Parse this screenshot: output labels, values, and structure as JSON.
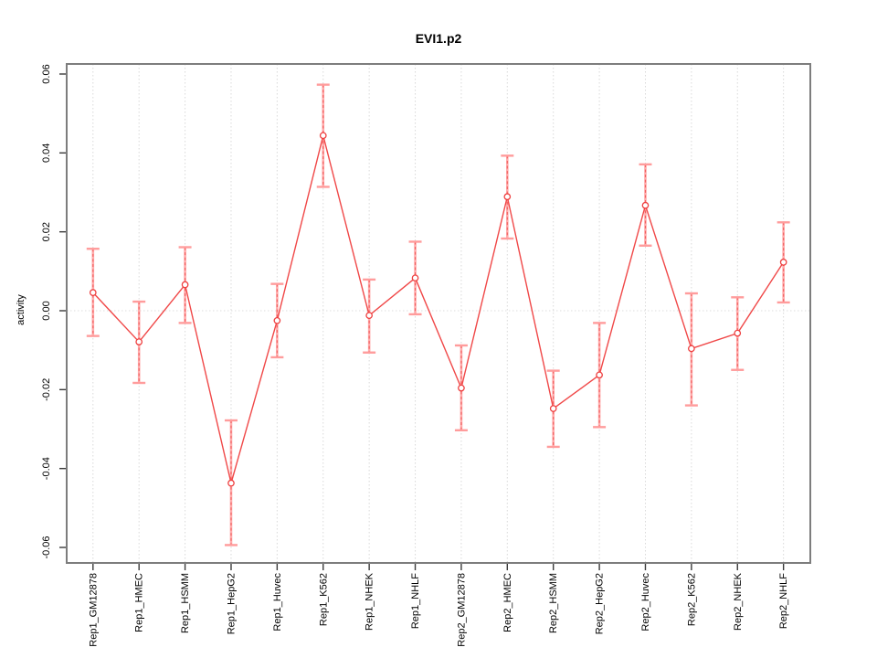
{
  "chart_data": {
    "type": "line",
    "title": "EVI1.p2",
    "xlabel": "",
    "ylabel": "activity",
    "ylim": [
      -0.06,
      0.06
    ],
    "ytick_labels": [
      "0.06",
      "0.04",
      "0.02",
      "0.00",
      "-0.02",
      "-0.04",
      "-0.06"
    ],
    "categories": [
      "Rep1_GM12878",
      "Rep1_HMEC",
      "Rep1_HSMM",
      "Rep1_HepG2",
      "Rep1_Huvec",
      "Rep1_K562",
      "Rep1_NHEK",
      "Rep1_NHLF",
      "Rep2_GM12878",
      "Rep2_HMEC",
      "Rep2_HSMM",
      "Rep2_HepG2",
      "Rep2_Huvec",
      "Rep2_K562",
      "Rep2_NHEK",
      "Rep2_NHLF"
    ],
    "series": [
      {
        "name": "EVI1.p2 activity",
        "marker": "open-circle",
        "values": [
          0.0046,
          -0.0079,
          0.0066,
          -0.0437,
          -0.0025,
          0.0444,
          -0.0012,
          0.0083,
          -0.0196,
          0.0289,
          -0.0248,
          -0.0163,
          0.0267,
          -0.0096,
          -0.0057,
          0.0123
        ],
        "upper": [
          0.0157,
          0.0023,
          0.0161,
          -0.0278,
          0.0068,
          0.0573,
          0.0079,
          0.0175,
          -0.0088,
          0.0393,
          -0.0152,
          -0.0031,
          0.0371,
          0.0044,
          0.0034,
          0.0224
        ],
        "lower": [
          -0.0064,
          -0.0183,
          -0.0031,
          -0.0594,
          -0.0118,
          0.0314,
          -0.0106,
          -0.0009,
          -0.0303,
          0.0183,
          -0.0345,
          -0.0295,
          0.0165,
          -0.024,
          -0.015,
          0.0021
        ]
      }
    ],
    "legend": "none",
    "grid": {
      "vertical_dotted_per_category": true,
      "horizontal_dotted_zero_line": true,
      "other_horizontal_gridlines": false
    },
    "colors": {
      "line": "#f04848",
      "marker": "#ee3f3f",
      "error_bar_light": "#ffabab",
      "error_bar_dash": "#f15e5e",
      "error_cap": "#ff9c9c",
      "grid": "#d9d9d9",
      "zero_line": "#dedede",
      "border": "#7d7d7d",
      "tick": "#3a3a3a",
      "text": "#000000"
    }
  }
}
